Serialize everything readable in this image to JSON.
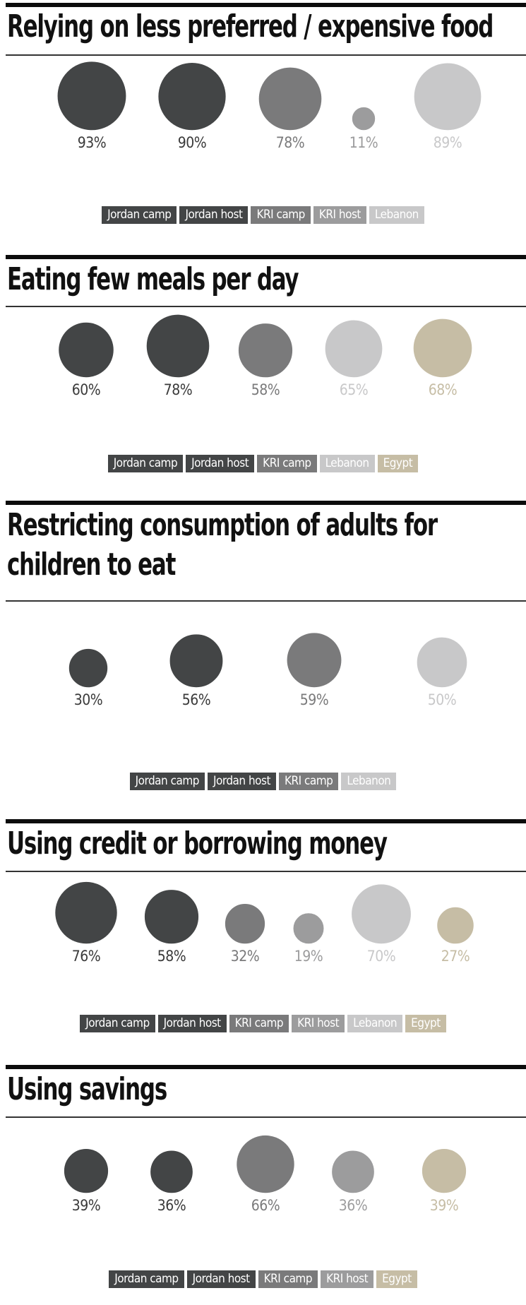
{
  "palette": {
    "Jordan camp": "#434546",
    "Jordan host": "#434546",
    "KRI camp": "#7a7a7b",
    "KRI host": "#9c9c9d",
    "Lebanon": "#c8c8c9",
    "Egypt": "#c6bda5"
  },
  "chart_data": [
    {
      "type": "bubble",
      "title": "Relying on less preferred / expensive food",
      "categories": [
        "Jordan camp",
        "Jordan host",
        "KRI camp",
        "KRI host",
        "Lebanon"
      ],
      "values": [
        93,
        90,
        78,
        11,
        89
      ],
      "labels": [
        "93%",
        "90%",
        "78%",
        "11%",
        "89%"
      ],
      "legend": [
        "Jordan camp",
        "Jordan host",
        "KRI camp",
        "KRI host",
        "Lebanon"
      ]
    },
    {
      "type": "bubble",
      "title": "Eating few meals per day",
      "categories": [
        "Jordan camp",
        "Jordan host",
        "KRI camp",
        "Lebanon",
        "Egypt"
      ],
      "values": [
        60,
        78,
        58,
        65,
        68
      ],
      "labels": [
        "60%",
        "78%",
        "58%",
        "65%",
        "68%"
      ],
      "legend": [
        "Jordan camp",
        "Jordan host",
        "KRI camp",
        "Lebanon",
        "Egypt"
      ]
    },
    {
      "type": "bubble",
      "title": "Restricting consumption of adults for children to eat",
      "categories": [
        "Jordan camp",
        "Jordan host",
        "KRI camp",
        "Lebanon"
      ],
      "values": [
        30,
        56,
        59,
        50
      ],
      "labels": [
        "30%",
        "56%",
        "59%",
        "50%"
      ],
      "legend": [
        "Jordan camp",
        "Jordan host",
        "KRI camp",
        "Lebanon"
      ]
    },
    {
      "type": "bubble",
      "title": "Using credit or borrowing money",
      "categories": [
        "Jordan camp",
        "Jordan host",
        "KRI camp",
        "KRI host",
        "Lebanon",
        "Egypt"
      ],
      "values": [
        76,
        58,
        32,
        19,
        70,
        27
      ],
      "labels": [
        "76%",
        "58%",
        "32%",
        "19%",
        "70%",
        "27%"
      ],
      "legend": [
        "Jordan camp",
        "Jordan host",
        "KRI camp",
        "KRI host",
        "Lebanon",
        "Egypt"
      ]
    },
    {
      "type": "bubble",
      "title": "Using savings",
      "categories": [
        "Jordan camp",
        "Jordan host",
        "KRI camp",
        "KRI host",
        "Egypt"
      ],
      "values": [
        39,
        36,
        66,
        36,
        39
      ],
      "labels": [
        "39%",
        "36%",
        "66%",
        "36%",
        "39%"
      ],
      "legend": [
        "Jordan camp",
        "Jordan host",
        "KRI camp",
        "KRI host",
        "Egypt"
      ]
    }
  ]
}
